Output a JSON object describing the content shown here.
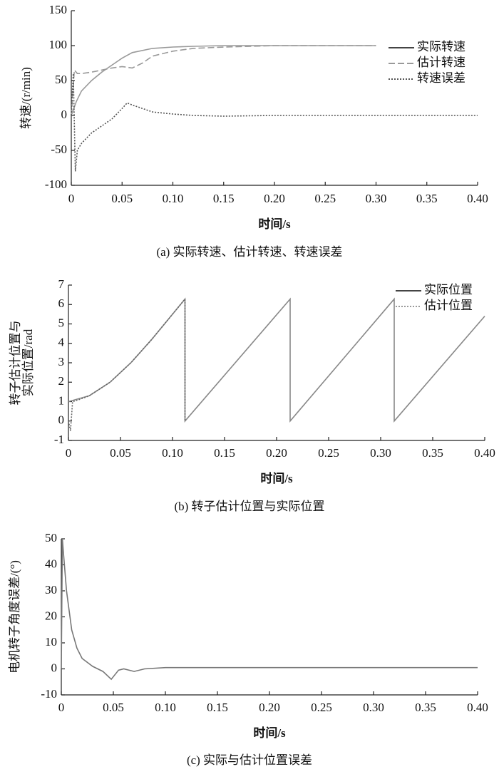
{
  "chart_data": [
    {
      "type": "line",
      "title": "(a) 实际转速、估计转速、转速误差",
      "xlabel": "时间/s",
      "ylabel": [
        "转速/(r/min)"
      ],
      "xlim": [
        0,
        0.4
      ],
      "xticks": [
        0,
        0.05,
        {
          "value": 0.1,
          "label": "0.10"
        },
        0.15,
        {
          "value": 0.2,
          "label": "0.20"
        },
        0.25,
        {
          "value": 0.3,
          "label": "0.30"
        },
        0.35,
        {
          "value": 0.4,
          "label": "0.40"
        }
      ],
      "ylim": [
        -100,
        150
      ],
      "yticks": [
        -100,
        -50,
        0,
        50,
        100,
        150
      ],
      "legend": "upper right",
      "series": [
        {
          "name": "实际转速",
          "color": "#9a9a9a",
          "legend_color": "#444",
          "dash": "solid",
          "x": [
            0,
            0.005,
            0.01,
            0.02,
            0.03,
            0.04,
            0.05,
            0.06,
            0.08,
            0.1,
            0.12,
            0.15,
            0.2,
            0.3
          ],
          "values": [
            0,
            20,
            35,
            50,
            62,
            72,
            82,
            90,
            96,
            98,
            99,
            100,
            100,
            100
          ]
        },
        {
          "name": "估计转速",
          "color": "#999",
          "legend_color": "#999",
          "dash": "dashed",
          "x": [
            0,
            0.003,
            0.006,
            0.01,
            0.02,
            0.03,
            0.04,
            0.05,
            0.06,
            0.07,
            0.08,
            0.1,
            0.12,
            0.15,
            0.2,
            0.3
          ],
          "values": [
            0,
            65,
            60,
            60,
            62,
            65,
            68,
            70,
            68,
            75,
            85,
            92,
            96,
            98,
            100,
            100
          ]
        },
        {
          "name": "转速误差",
          "color": "#555",
          "legend_color": "#555",
          "dash": "dotted",
          "x": [
            0,
            0.002,
            0.004,
            0.006,
            0.01,
            0.02,
            0.03,
            0.04,
            0.05,
            0.055,
            0.06,
            0.07,
            0.08,
            0.1,
            0.12,
            0.15,
            0.2,
            0.3,
            0.4
          ],
          "values": [
            0,
            60,
            -80,
            -50,
            -40,
            -25,
            -15,
            -5,
            10,
            18,
            15,
            10,
            5,
            2,
            0,
            -1,
            0,
            0,
            0
          ]
        }
      ]
    },
    {
      "type": "line",
      "title": "(b) 转子估计位置与实际位置",
      "xlabel": "时间/s",
      "ylabel": [
        "转子估计位置与",
        "实际位置/rad"
      ],
      "xlim": [
        0,
        0.4
      ],
      "xticks": [
        0,
        0.05,
        {
          "value": 0.1,
          "label": "0.10"
        },
        0.15,
        {
          "value": 0.2,
          "label": "0.20"
        },
        0.25,
        {
          "value": 0.3,
          "label": "0.30"
        },
        0.35,
        {
          "value": 0.4,
          "label": "0.40"
        }
      ],
      "ylim": [
        -1,
        7
      ],
      "yticks": [
        -1,
        0,
        1,
        2,
        3,
        4,
        5,
        6,
        7
      ],
      "legend": "upper right",
      "series": [
        {
          "name": "实际位置",
          "color": "#888",
          "legend_color": "#444",
          "dash": "solid",
          "x": [
            0,
            0.02,
            0.04,
            0.06,
            0.08,
            0.1,
            0.112,
            0.112,
            0.213,
            0.213,
            0.313,
            0.313,
            0.4
          ],
          "values": [
            1,
            1.3,
            2,
            3,
            4.2,
            5.5,
            6.28,
            0,
            6.28,
            0,
            6.28,
            0,
            5.4
          ]
        },
        {
          "name": "估计位置",
          "color": "#666",
          "legend_color": "#999",
          "dash": "dotted",
          "x": [
            0,
            0.002,
            0.004,
            0.01,
            0.02,
            0.04,
            0.06,
            0.08,
            0.1,
            0.112,
            0.112
          ],
          "values": [
            0,
            -0.5,
            1,
            1.1,
            1.3,
            2,
            3,
            4.2,
            5.5,
            6.28,
            0
          ]
        }
      ]
    },
    {
      "type": "line",
      "title": "(c) 实际与估计位置误差",
      "xlabel": "时间/s",
      "ylabel": [
        "电机转子角度误差/(°)"
      ],
      "xlim": [
        0,
        0.4
      ],
      "xticks": [
        0,
        0.05,
        {
          "value": 0.1,
          "label": "0.10"
        },
        0.15,
        {
          "value": 0.2,
          "label": "0.20"
        },
        0.25,
        {
          "value": 0.3,
          "label": "0.30"
        },
        0.35,
        {
          "value": 0.4,
          "label": "0.40"
        }
      ],
      "ylim": [
        -10,
        50
      ],
      "yticks": [
        -10,
        0,
        10,
        20,
        30,
        40,
        50
      ],
      "series": [
        {
          "color": "#777",
          "dash": "solid",
          "x": [
            0,
            0.001,
            0.002,
            0.005,
            0.01,
            0.015,
            0.02,
            0.03,
            0.04,
            0.048,
            0.055,
            0.06,
            0.07,
            0.08,
            0.1,
            0.15,
            0.4
          ],
          "values": [
            0,
            50,
            45,
            30,
            15,
            8,
            4,
            1,
            -1,
            -4,
            -0.5,
            0,
            -1,
            0,
            0.5,
            0.5,
            0.5
          ]
        }
      ]
    }
  ]
}
